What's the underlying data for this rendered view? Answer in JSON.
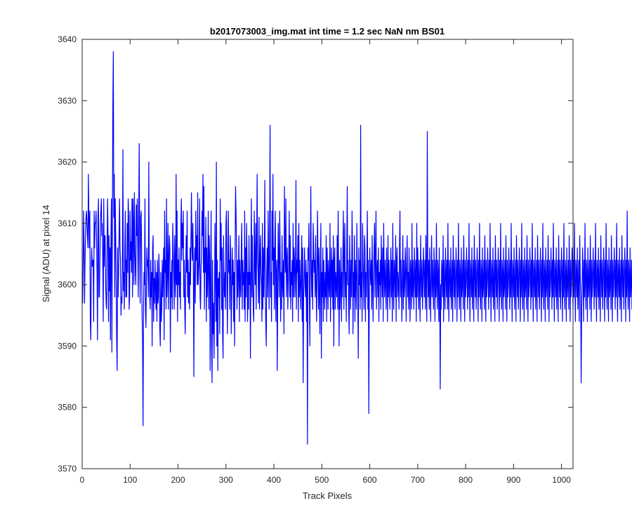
{
  "chart_data": {
    "type": "line",
    "title": "b2017073003_img.mat int time = 1.2 sec  NaN nm BS01",
    "xlabel": "Track Pixels",
    "ylabel": "Signal (ADU) at pixel 14",
    "xlim": [
      0,
      1024
    ],
    "ylim": [
      3570,
      3640
    ],
    "xticks": [
      0,
      100,
      200,
      300,
      400,
      500,
      600,
      700,
      800,
      900,
      1000
    ],
    "yticks": [
      3570,
      3580,
      3590,
      3600,
      3610,
      3620,
      3630,
      3640
    ],
    "grid": false,
    "legend": "none",
    "series_color": "#0000ff",
    "series": [
      {
        "name": "",
        "x_start": 1,
        "x_step": 1,
        "values": [
          3597,
          3604,
          3612,
          3606,
          3597,
          3604,
          3608,
          3611,
          3612,
          3610,
          3608,
          3606,
          3618,
          3611,
          3606,
          3612,
          3594,
          3591,
          3602,
          3606,
          3603,
          3604,
          3604,
          3594,
          3612,
          3606,
          3610,
          3610,
          3612,
          3608,
          3602,
          3591,
          3611,
          3614,
          3598,
          3598,
          3604,
          3610,
          3612,
          3614,
          3608,
          3610,
          3604,
          3594,
          3614,
          3603,
          3608,
          3608,
          3600,
          3597,
          3596,
          3606,
          3614,
          3608,
          3594,
          3608,
          3599,
          3606,
          3591,
          3607,
          3614,
          3589,
          3609,
          3629,
          3638,
          3611,
          3618,
          3598,
          3614,
          3608,
          3600,
          3591,
          3586,
          3606,
          3598,
          3602,
          3608,
          3614,
          3606,
          3604,
          3595,
          3598,
          3597,
          3604,
          3622,
          3599,
          3602,
          3596,
          3606,
          3612,
          3598,
          3604,
          3598,
          3610,
          3602,
          3614,
          3611,
          3596,
          3598,
          3612,
          3604,
          3607,
          3602,
          3614,
          3598,
          3614,
          3610,
          3600,
          3615,
          3606,
          3602,
          3600,
          3613,
          3608,
          3614,
          3606,
          3598,
          3612,
          3623,
          3606,
          3597,
          3611,
          3612,
          3606,
          3595,
          3591,
          3577,
          3596,
          3602,
          3600,
          3614,
          3596,
          3593,
          3600,
          3606,
          3603,
          3604,
          3598,
          3620,
          3602,
          3598,
          3596,
          3604,
          3598,
          3602,
          3590,
          3606,
          3608,
          3594,
          3601,
          3597,
          3604,
          3600,
          3596,
          3602,
          3594,
          3604,
          3597,
          3598,
          3605,
          3602,
          3593,
          3590,
          3602,
          3594,
          3596,
          3604,
          3598,
          3602,
          3606,
          3591,
          3612,
          3602,
          3604,
          3596,
          3614,
          3598,
          3602,
          3610,
          3596,
          3604,
          3608,
          3606,
          3589,
          3602,
          3598,
          3604,
          3596,
          3610,
          3606,
          3602,
          3596,
          3608,
          3602,
          3598,
          3618,
          3600,
          3612,
          3594,
          3604,
          3600,
          3606,
          3598,
          3602,
          3596,
          3610,
          3614,
          3604,
          3610,
          3606,
          3612,
          3598,
          3604,
          3596,
          3592,
          3602,
          3608,
          3602,
          3612,
          3598,
          3604,
          3597,
          3602,
          3596,
          3606,
          3600,
          3608,
          3615,
          3606,
          3604,
          3610,
          3602,
          3585,
          3602,
          3606,
          3597,
          3612,
          3604,
          3608,
          3600,
          3615,
          3600,
          3602,
          3604,
          3614,
          3598,
          3596,
          3603,
          3604,
          3612,
          3608,
          3618,
          3602,
          3616,
          3596,
          3606,
          3602,
          3611,
          3594,
          3606,
          3598,
          3602,
          3612,
          3596,
          3608,
          3604,
          3586,
          3602,
          3612,
          3590,
          3584,
          3604,
          3592,
          3597,
          3588,
          3595,
          3610,
          3602,
          3594,
          3620,
          3590,
          3604,
          3586,
          3601,
          3598,
          3602,
          3592,
          3614,
          3604,
          3610,
          3596,
          3606,
          3592,
          3588,
          3608,
          3600,
          3598,
          3602,
          3596,
          3610,
          3612,
          3600,
          3592,
          3604,
          3612,
          3602,
          3604,
          3596,
          3608,
          3604,
          3592,
          3598,
          3606,
          3600,
          3604,
          3594,
          3602,
          3590,
          3604,
          3616,
          3612,
          3606,
          3596,
          3604,
          3598,
          3602,
          3608,
          3594,
          3604,
          3600,
          3598,
          3606,
          3610,
          3596,
          3604,
          3600,
          3602,
          3596,
          3612,
          3594,
          3606,
          3598,
          3610,
          3604,
          3594,
          3602,
          3596,
          3608,
          3600,
          3602,
          3588,
          3604,
          3614,
          3598,
          3608,
          3600,
          3596,
          3594,
          3612,
          3604,
          3600,
          3610,
          3596,
          3606,
          3618,
          3604,
          3602,
          3597,
          3611,
          3596,
          3604,
          3608,
          3602,
          3600,
          3594,
          3610,
          3596,
          3606,
          3598,
          3604,
          3617,
          3599,
          3594,
          3590,
          3602,
          3606,
          3598,
          3612,
          3604,
          3596,
          3608,
          3626,
          3598,
          3602,
          3594,
          3612,
          3604,
          3618,
          3600,
          3606,
          3596,
          3608,
          3612,
          3594,
          3602,
          3604,
          3586,
          3598,
          3610,
          3604,
          3598,
          3612,
          3606,
          3594,
          3602,
          3596,
          3608,
          3600,
          3598,
          3604,
          3592,
          3616,
          3606,
          3602,
          3614,
          3598,
          3604,
          3606,
          3596,
          3600,
          3604,
          3612,
          3598,
          3608,
          3596,
          3602,
          3600,
          3604,
          3594,
          3610,
          3598,
          3606,
          3604,
          3598,
          3602,
          3617,
          3596,
          3604,
          3602,
          3608,
          3594,
          3610,
          3598,
          3604,
          3600,
          3596,
          3602,
          3608,
          3594,
          3606,
          3584,
          3598,
          3602,
          3606,
          3600,
          3598,
          3604,
          3594,
          3602,
          3574,
          3606,
          3604,
          3610,
          3598,
          3590,
          3604,
          3616,
          3602,
          3598,
          3604,
          3596,
          3610,
          3606,
          3602,
          3604,
          3598,
          3608,
          3600,
          3594,
          3602,
          3612,
          3604,
          3596,
          3606,
          3598,
          3592,
          3604,
          3610,
          3588,
          3602,
          3598,
          3606,
          3594,
          3604,
          3600,
          3596,
          3602,
          3598,
          3608,
          3594,
          3606,
          3602,
          3596,
          3604,
          3600,
          3598,
          3610,
          3594,
          3602,
          3606,
          3598,
          3604,
          3596,
          3608,
          3590,
          3604,
          3606,
          3596,
          3602,
          3600,
          3598,
          3608,
          3596,
          3612,
          3602,
          3590,
          3604,
          3596,
          3600,
          3606,
          3594,
          3602,
          3598,
          3606,
          3612,
          3596,
          3604,
          3610,
          3598,
          3602,
          3594,
          3606,
          3616,
          3600,
          3604,
          3596,
          3592,
          3608,
          3602,
          3596,
          3604,
          3598,
          3612,
          3606,
          3592,
          3602,
          3598,
          3608,
          3594,
          3604,
          3600,
          3596,
          3610,
          3602,
          3598,
          3588,
          3606,
          3600,
          3604,
          3596,
          3626,
          3598,
          3602,
          3594,
          3610,
          3604,
          3600,
          3596,
          3608,
          3606,
          3594,
          3602,
          3598,
          3604,
          3612,
          3596,
          3604,
          3579,
          3598,
          3606,
          3602,
          3600,
          3604,
          3596,
          3608,
          3600,
          3594,
          3602,
          3606,
          3610,
          3598,
          3604,
          3612,
          3596,
          3602,
          3604,
          3598,
          3606,
          3594,
          3602,
          3600,
          3604,
          3596,
          3608,
          3602,
          3598,
          3606,
          3594,
          3610,
          3602,
          3598,
          3604,
          3600,
          3596,
          3606,
          3602,
          3594,
          3608,
          3598,
          3604,
          3600,
          3596,
          3602,
          3606,
          3598,
          3604,
          3594,
          3610,
          3600,
          3596,
          3604,
          3602,
          3598,
          3608,
          3594,
          3604,
          3606,
          3598,
          3602,
          3600,
          3596,
          3606,
          3612,
          3598,
          3604,
          3600,
          3594,
          3602,
          3608,
          3596,
          3604,
          3598,
          3600,
          3606,
          3602,
          3594,
          3604,
          3608,
          3598,
          3602,
          3596,
          3606,
          3600,
          3594,
          3604,
          3602,
          3596,
          3610,
          3598,
          3604,
          3600,
          3596,
          3606,
          3602,
          3598,
          3604,
          3594,
          3610,
          3598,
          3606,
          3602,
          3596,
          3604,
          3600,
          3594,
          3608,
          3602,
          3598,
          3604,
          3596,
          3600,
          3606,
          3602,
          3598,
          3604,
          3596,
          3608,
          3600,
          3594,
          3625,
          3602,
          3598,
          3604,
          3596,
          3606,
          3600,
          3594,
          3602,
          3608,
          3598,
          3604,
          3600,
          3596,
          3606,
          3602,
          3594,
          3604,
          3598,
          3610,
          3600,
          3596,
          3604,
          3602,
          3594,
          3606,
          3598,
          3583,
          3600,
          3596,
          3604,
          3602,
          3598,
          3608,
          3594,
          3604,
          3600,
          3596,
          3606,
          3602,
          3598,
          3604,
          3596,
          3610,
          3600,
          3594,
          3604,
          3602,
          3598,
          3606,
          3596,
          3600,
          3604,
          3594,
          3608,
          3602,
          3598,
          3604,
          3596,
          3600,
          3606,
          3602,
          3594,
          3604,
          3598,
          3610,
          3600,
          3596,
          3604,
          3602,
          3594,
          3606,
          3598,
          3600,
          3604,
          3596,
          3608,
          3602,
          3594,
          3604,
          3598,
          3600,
          3606,
          3602,
          3596,
          3604,
          3598,
          3610,
          3600,
          3594,
          3604,
          3602,
          3598,
          3606,
          3596,
          3600,
          3604,
          3594,
          3608,
          3602,
          3598,
          3604,
          3596,
          3600,
          3606,
          3602,
          3594,
          3604,
          3598,
          3610,
          3600,
          3596,
          3604,
          3602,
          3594,
          3606,
          3598,
          3600,
          3604,
          3596,
          3608,
          3602,
          3594,
          3604,
          3598,
          3600,
          3606,
          3602,
          3596,
          3604,
          3598,
          3610,
          3600,
          3594,
          3604,
          3602,
          3598,
          3606,
          3596,
          3600,
          3604,
          3594,
          3608,
          3602,
          3598,
          3604,
          3596,
          3600,
          3606,
          3602,
          3594,
          3604,
          3598,
          3610,
          3600,
          3596,
          3604,
          3602,
          3594,
          3606,
          3598,
          3600,
          3604,
          3596,
          3608,
          3602,
          3594,
          3604,
          3598,
          3600,
          3606,
          3602,
          3596,
          3604,
          3598,
          3610,
          3600,
          3594,
          3604,
          3602,
          3598,
          3606,
          3596,
          3600,
          3604,
          3594,
          3608,
          3602,
          3598,
          3604,
          3596,
          3600,
          3606,
          3602,
          3594,
          3604,
          3598,
          3610,
          3600,
          3596,
          3604,
          3602,
          3594,
          3606,
          3598,
          3600,
          3604,
          3596,
          3608,
          3602,
          3594,
          3604,
          3598,
          3600,
          3606,
          3602,
          3596,
          3604,
          3598,
          3610,
          3600,
          3594,
          3604,
          3602,
          3598,
          3606,
          3596,
          3600,
          3604,
          3594,
          3608,
          3602,
          3598,
          3604,
          3596,
          3600,
          3606,
          3602,
          3594,
          3604,
          3598,
          3610,
          3600,
          3596,
          3604,
          3602,
          3594,
          3606,
          3598,
          3600,
          3604,
          3596,
          3608,
          3602,
          3594,
          3604,
          3598,
          3600,
          3606,
          3602,
          3596,
          3604,
          3598,
          3610,
          3600,
          3594,
          3604,
          3602,
          3598,
          3606,
          3596,
          3600,
          3604,
          3594,
          3608,
          3602,
          3598,
          3604,
          3596,
          3600,
          3606,
          3602,
          3594,
          3604,
          3598,
          3610,
          3600,
          3596,
          3604,
          3602,
          3594,
          3606,
          3598,
          3600,
          3604,
          3596,
          3608,
          3602,
          3594,
          3604,
          3598,
          3600,
          3606,
          3602,
          3596,
          3604,
          3598,
          3610,
          3600,
          3594,
          3604,
          3602,
          3598,
          3606,
          3596,
          3600,
          3604,
          3594,
          3608,
          3602,
          3598,
          3584,
          3596,
          3600,
          3606,
          3602,
          3594,
          3604,
          3598,
          3610,
          3600,
          3596,
          3604,
          3602,
          3594,
          3606,
          3598,
          3600,
          3604,
          3596,
          3608,
          3602,
          3594,
          3604,
          3598,
          3600,
          3606,
          3602,
          3596,
          3604,
          3598,
          3610,
          3600,
          3594,
          3604,
          3602,
          3598,
          3606,
          3596,
          3600,
          3604,
          3594,
          3608,
          3602,
          3598,
          3604,
          3596,
          3600,
          3606,
          3602,
          3594,
          3604,
          3598,
          3610,
          3600,
          3596,
          3604,
          3602,
          3594,
          3606,
          3598,
          3600,
          3604,
          3596,
          3608,
          3602,
          3594,
          3604,
          3598,
          3600,
          3606,
          3602,
          3596,
          3604,
          3598,
          3610,
          3600,
          3594,
          3604,
          3602,
          3598,
          3606,
          3596,
          3600,
          3604,
          3594,
          3608,
          3602,
          3598,
          3604,
          3596,
          3600,
          3606,
          3602,
          3594,
          3604,
          3598,
          3612,
          3600,
          3596,
          3604,
          3602,
          3594,
          3606,
          3598,
          3600,
          3604,
          3596,
          3608,
          3602,
          3594,
          3604,
          3598,
          3600,
          3606
        ]
      }
    ]
  }
}
